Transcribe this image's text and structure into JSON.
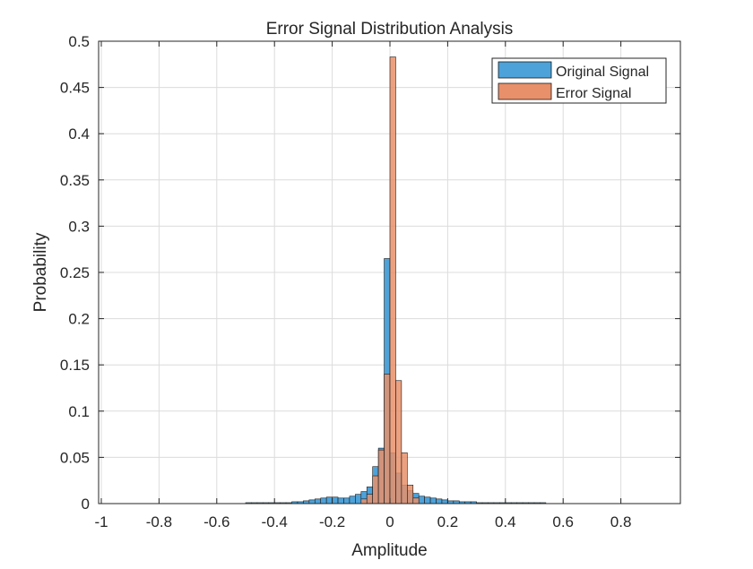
{
  "chart_data": {
    "type": "bar",
    "title": "Error Signal Distribution Analysis",
    "xlabel": "Amplitude",
    "ylabel": "Probability",
    "xlim": [
      -1.0,
      1.0
    ],
    "ylim": [
      0,
      0.5
    ],
    "xticks": [
      -1,
      -0.8,
      -0.6,
      -0.4,
      -0.2,
      0,
      0.2,
      0.4,
      0.6,
      0.8
    ],
    "xtick_labels": [
      "-1",
      "-0.8",
      "-0.6",
      "-0.4",
      "-0.2",
      "0",
      "0.2",
      "0.4",
      "0.6",
      "0.8"
    ],
    "yticks": [
      0,
      0.05,
      0.1,
      0.15,
      0.2,
      0.25,
      0.3,
      0.35,
      0.4,
      0.45,
      0.5
    ],
    "ytick_labels": [
      "0",
      "0.05",
      "0.1",
      "0.15",
      "0.2",
      "0.25",
      "0.3",
      "0.35",
      "0.4",
      "0.45",
      "0.5"
    ],
    "grid": true,
    "legend_position": "top-right",
    "bin_width": 0.02,
    "series": [
      {
        "name": "Original Signal",
        "color": "#0072BD",
        "face_color": "#4DA2D9",
        "bin_centers": [
          -0.49,
          -0.47,
          -0.45,
          -0.43,
          -0.41,
          -0.39,
          -0.37,
          -0.35,
          -0.33,
          -0.31,
          -0.29,
          -0.27,
          -0.25,
          -0.23,
          -0.21,
          -0.19,
          -0.17,
          -0.15,
          -0.13,
          -0.11,
          -0.09,
          -0.07,
          -0.05,
          -0.03,
          -0.01,
          0.01,
          0.03,
          0.05,
          0.07,
          0.09,
          0.11,
          0.13,
          0.15,
          0.17,
          0.19,
          0.21,
          0.23,
          0.25,
          0.27,
          0.29,
          0.31,
          0.33,
          0.35,
          0.37,
          0.39,
          0.41,
          0.43,
          0.45,
          0.47,
          0.49,
          0.51,
          0.53
        ],
        "values": [
          0.001,
          0.001,
          0.001,
          0.001,
          0.001,
          0.001,
          0.001,
          0.001,
          0.002,
          0.002,
          0.003,
          0.004,
          0.005,
          0.006,
          0.007,
          0.007,
          0.006,
          0.006,
          0.008,
          0.01,
          0.013,
          0.018,
          0.04,
          0.06,
          0.265,
          0.055,
          0.033,
          0.02,
          0.014,
          0.011,
          0.008,
          0.007,
          0.006,
          0.005,
          0.004,
          0.003,
          0.003,
          0.002,
          0.002,
          0.002,
          0.001,
          0.001,
          0.001,
          0.001,
          0.001,
          0.001,
          0.001,
          0.001,
          0.001,
          0.001,
          0.001,
          0.001
        ]
      },
      {
        "name": "Error Signal",
        "color": "#D95319",
        "face_color": "#E8906A",
        "bin_centers": [
          -0.09,
          -0.07,
          -0.05,
          -0.03,
          -0.01,
          0.01,
          0.03,
          0.05,
          0.07,
          0.09
        ],
        "values": [
          0.005,
          0.01,
          0.03,
          0.058,
          0.14,
          0.483,
          0.133,
          0.055,
          0.02,
          0.006
        ]
      }
    ]
  }
}
